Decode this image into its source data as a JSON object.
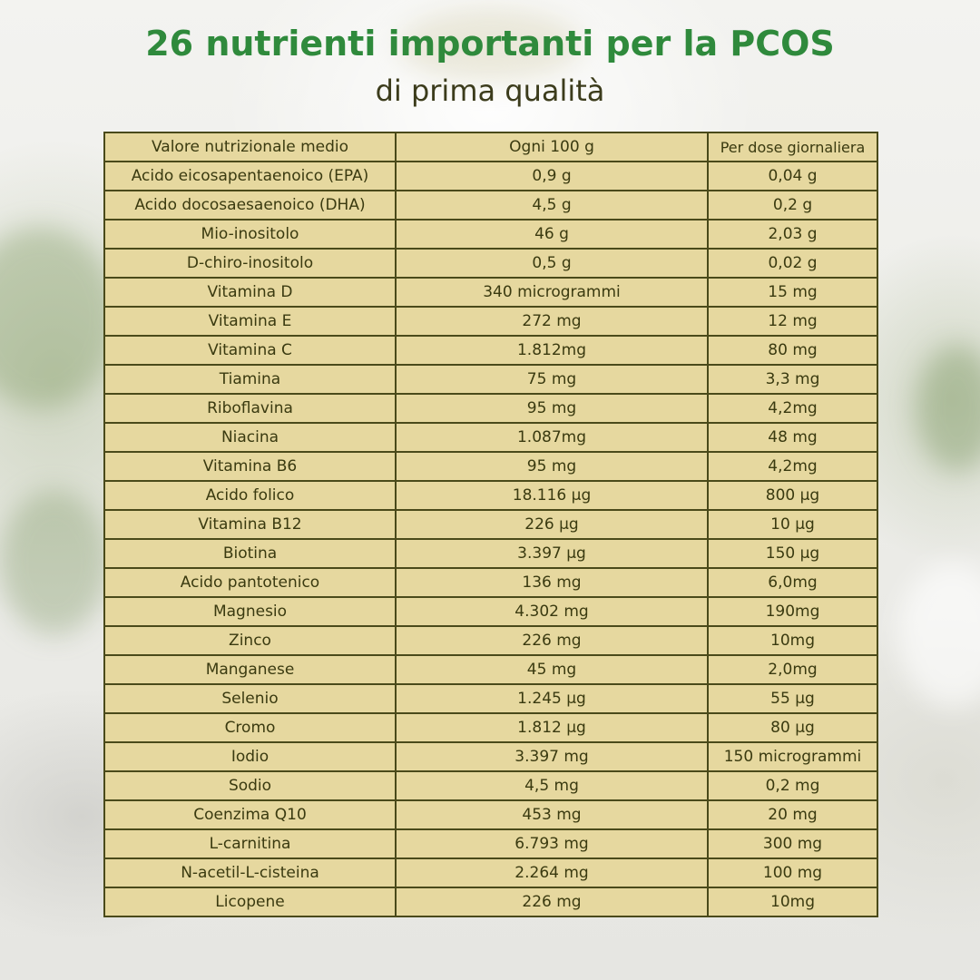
{
  "heading": {
    "title": "26 nutrienti importanti per la PCOS",
    "subtitle": "di prima qualità"
  },
  "table": {
    "headers": [
      "Valore nutrizionale medio",
      "Ogni 100 g",
      "Per dose giornaliera"
    ],
    "rows": [
      [
        "Acido eicosapentaenoico (EPA)",
        "0,9 g",
        "0,04 g"
      ],
      [
        "Acido docosaesaenoico (DHA)",
        "4,5 g",
        "0,2 g"
      ],
      [
        "Mio-inositolo",
        "46 g",
        "2,03 g"
      ],
      [
        "D-chiro-inositolo",
        "0,5 g",
        "0,02 g"
      ],
      [
        "Vitamina D",
        "340 microgrammi",
        "15 mg"
      ],
      [
        "Vitamina E",
        "272 mg",
        "12 mg"
      ],
      [
        "Vitamina C",
        "1.812mg",
        "80 mg"
      ],
      [
        "Tiamina",
        "75 mg",
        "3,3 mg"
      ],
      [
        "Riboflavina",
        "95 mg",
        "4,2mg"
      ],
      [
        "Niacina",
        "1.087mg",
        "48 mg"
      ],
      [
        "Vitamina B6",
        "95 mg",
        "4,2mg"
      ],
      [
        "Acido folico",
        "18.116 µg",
        "800 µg"
      ],
      [
        "Vitamina B12",
        "226 µg",
        "10 µg"
      ],
      [
        "Biotina",
        "3.397 µg",
        "150 µg"
      ],
      [
        "Acido pantotenico",
        "136 mg",
        "6,0mg"
      ],
      [
        "Magnesio",
        "4.302 mg",
        "190mg"
      ],
      [
        "Zinco",
        "226 mg",
        "10mg"
      ],
      [
        "Manganese",
        "45 mg",
        "2,0mg"
      ],
      [
        "Selenio",
        "1.245 µg",
        "55 µg"
      ],
      [
        "Cromo",
        "1.812 µg",
        "80 µg"
      ],
      [
        "Iodio",
        "3.397 mg",
        "150 microgrammi"
      ],
      [
        "Sodio",
        "4,5 mg",
        "0,2 mg"
      ],
      [
        "Coenzima Q10",
        "453 mg",
        "20 mg"
      ],
      [
        "L-carnitina",
        "6.793 mg",
        "300 mg"
      ],
      [
        "N-acetil-L-cisteina",
        "2.264 mg",
        "100 mg"
      ],
      [
        "Licopene",
        "226 mg",
        "10mg"
      ]
    ]
  },
  "colors": {
    "title": "#2f8a3c",
    "subtitle": "#3c3c1c",
    "table_fill": "#e6d89f",
    "table_border": "#4a4a1a",
    "text": "#3a3a10"
  }
}
